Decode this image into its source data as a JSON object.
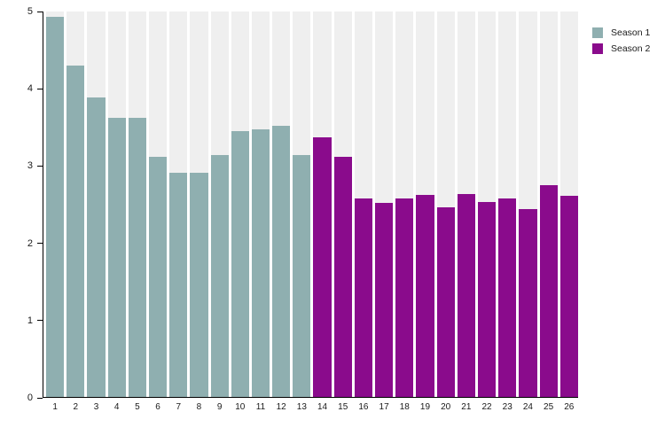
{
  "figure": {
    "background_color": "#ffffff",
    "track_color": "#efefef",
    "axis_color": "#000000",
    "text_color": "#1a1a1a"
  },
  "legend": {
    "position": "top-right",
    "items": [
      {
        "label": "Season 1",
        "color": "#8fafb0"
      },
      {
        "label": "Season 2",
        "color": "#8a0b8c"
      }
    ]
  },
  "chart_data": {
    "type": "bar",
    "title": "",
    "xlabel": "",
    "ylabel": "",
    "ylim": [
      0,
      5
    ],
    "yticks": [
      0,
      1,
      2,
      3,
      4,
      5
    ],
    "grid": false,
    "background_column_tracks": true,
    "legend_position": "top-right",
    "categories": [
      "1",
      "2",
      "3",
      "4",
      "5",
      "6",
      "7",
      "8",
      "9",
      "10",
      "11",
      "12",
      "13",
      "14",
      "15",
      "16",
      "17",
      "18",
      "19",
      "20",
      "21",
      "22",
      "23",
      "24",
      "25",
      "26"
    ],
    "series": [
      {
        "name": "Season 1",
        "color": "#8fafb0",
        "episodes": [
          1,
          2,
          3,
          4,
          5,
          6,
          7,
          8,
          9,
          10,
          11,
          12,
          13
        ],
        "values": [
          4.93,
          4.3,
          3.88,
          3.62,
          3.62,
          3.11,
          2.91,
          2.91,
          3.14,
          3.45,
          3.47,
          3.52,
          3.14
        ]
      },
      {
        "name": "Season 2",
        "color": "#8a0b8c",
        "episodes": [
          14,
          15,
          16,
          17,
          18,
          19,
          20,
          21,
          22,
          23,
          24,
          25,
          26
        ],
        "values": [
          3.37,
          3.11,
          2.58,
          2.52,
          2.57,
          2.62,
          2.46,
          2.63,
          2.53,
          2.57,
          2.44,
          2.75,
          2.61
        ]
      }
    ]
  }
}
